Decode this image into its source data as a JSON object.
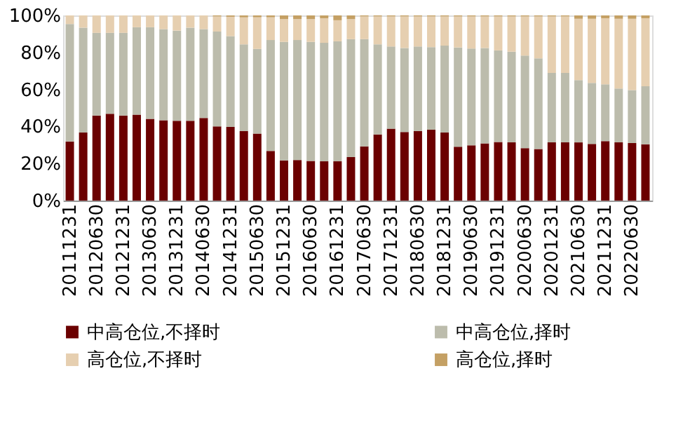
{
  "chart_data": {
    "type": "bar",
    "stacked": true,
    "categories": [
      "20111231",
      null,
      "20120630",
      null,
      "20121231",
      null,
      "20130630",
      null,
      "20131231",
      null,
      "20140630",
      null,
      "20141231",
      null,
      "20150630",
      null,
      "20151231",
      null,
      "20160630",
      null,
      "20161231",
      null,
      "20170630",
      null,
      "20171231",
      null,
      "20180630",
      null,
      "20181231",
      null,
      "20190630",
      null,
      "20191231",
      null,
      "20200630",
      null,
      "20201231",
      null,
      "20210630",
      null,
      "20211231",
      null,
      "20220630",
      null
    ],
    "series": [
      {
        "name": "中高仓位,不择时",
        "color": "#6b0000",
        "values": [
          31.9,
          36.7,
          45.9,
          46.9,
          45.9,
          46.4,
          44.1,
          43.4,
          43.1,
          43.1,
          44.6,
          40.1,
          39.8,
          37.5,
          36.2,
          26.8,
          21.7,
          21.9,
          21.4,
          21.2,
          21.2,
          23.5,
          29.3,
          35.7,
          38.8,
          37.0,
          37.5,
          38.3,
          36.7,
          29.1,
          29.8,
          30.9,
          31.6,
          31.4,
          28.3,
          27.8,
          31.4,
          31.4,
          31.4,
          30.6,
          32.1,
          31.4,
          31.1,
          30.4
        ]
      },
      {
        "name": "中高仓位,择时",
        "color": "#bcbcac",
        "values": [
          63.5,
          56.7,
          44.7,
          43.7,
          44.7,
          47.2,
          49.5,
          49.2,
          48.7,
          50.3,
          48.0,
          51.2,
          49.0,
          46.9,
          45.7,
          59.9,
          64.0,
          64.8,
          64.3,
          64.0,
          64.8,
          63.7,
          57.9,
          48.7,
          44.4,
          45.4,
          45.7,
          44.6,
          47.0,
          53.6,
          52.3,
          51.5,
          49.5,
          49.0,
          50.0,
          49.0,
          37.5,
          37.5,
          33.7,
          32.9,
          30.7,
          29.1,
          28.6,
          31.3
        ]
      },
      {
        "name": "高仓位,不择时",
        "color": "#e6cfb0",
        "values": [
          4.6,
          6.6,
          9.4,
          9.4,
          9.4,
          6.4,
          6.4,
          7.4,
          8.2,
          6.6,
          7.4,
          8.2,
          10.5,
          14.6,
          17.1,
          12.3,
          12.3,
          11.3,
          12.3,
          13.3,
          11.4,
          10.8,
          12.3,
          15.1,
          16.3,
          17.1,
          16.3,
          16.6,
          15.8,
          16.8,
          17.4,
          17.1,
          18.4,
          19.1,
          21.2,
          22.7,
          30.6,
          30.6,
          33.1,
          34.7,
          35.7,
          37.7,
          38.5,
          36.8
        ]
      },
      {
        "name": "高仓位,择时",
        "color": "#c4a064",
        "values": [
          0,
          0,
          0,
          0,
          0,
          0,
          0,
          0,
          0,
          0,
          0,
          0.5,
          0.7,
          1,
          1,
          1,
          2,
          2,
          2,
          1.5,
          2.6,
          2,
          0.5,
          0.5,
          0.5,
          0.5,
          0.5,
          0.5,
          0.5,
          0.5,
          0.5,
          0.5,
          0.5,
          0.5,
          0.5,
          0.5,
          0.5,
          0.5,
          1.8,
          1.8,
          1.5,
          1.8,
          1.8,
          1.5
        ]
      }
    ],
    "ylim": [
      0,
      100
    ],
    "yticks": [
      {
        "value": 0,
        "label": "0%"
      },
      {
        "value": 20,
        "label": "20%"
      },
      {
        "value": 40,
        "label": "40%"
      },
      {
        "value": 60,
        "label": "60%"
      },
      {
        "value": 80,
        "label": "80%"
      },
      {
        "value": 100,
        "label": "100%"
      }
    ],
    "grid": false,
    "legend": "bottom"
  }
}
